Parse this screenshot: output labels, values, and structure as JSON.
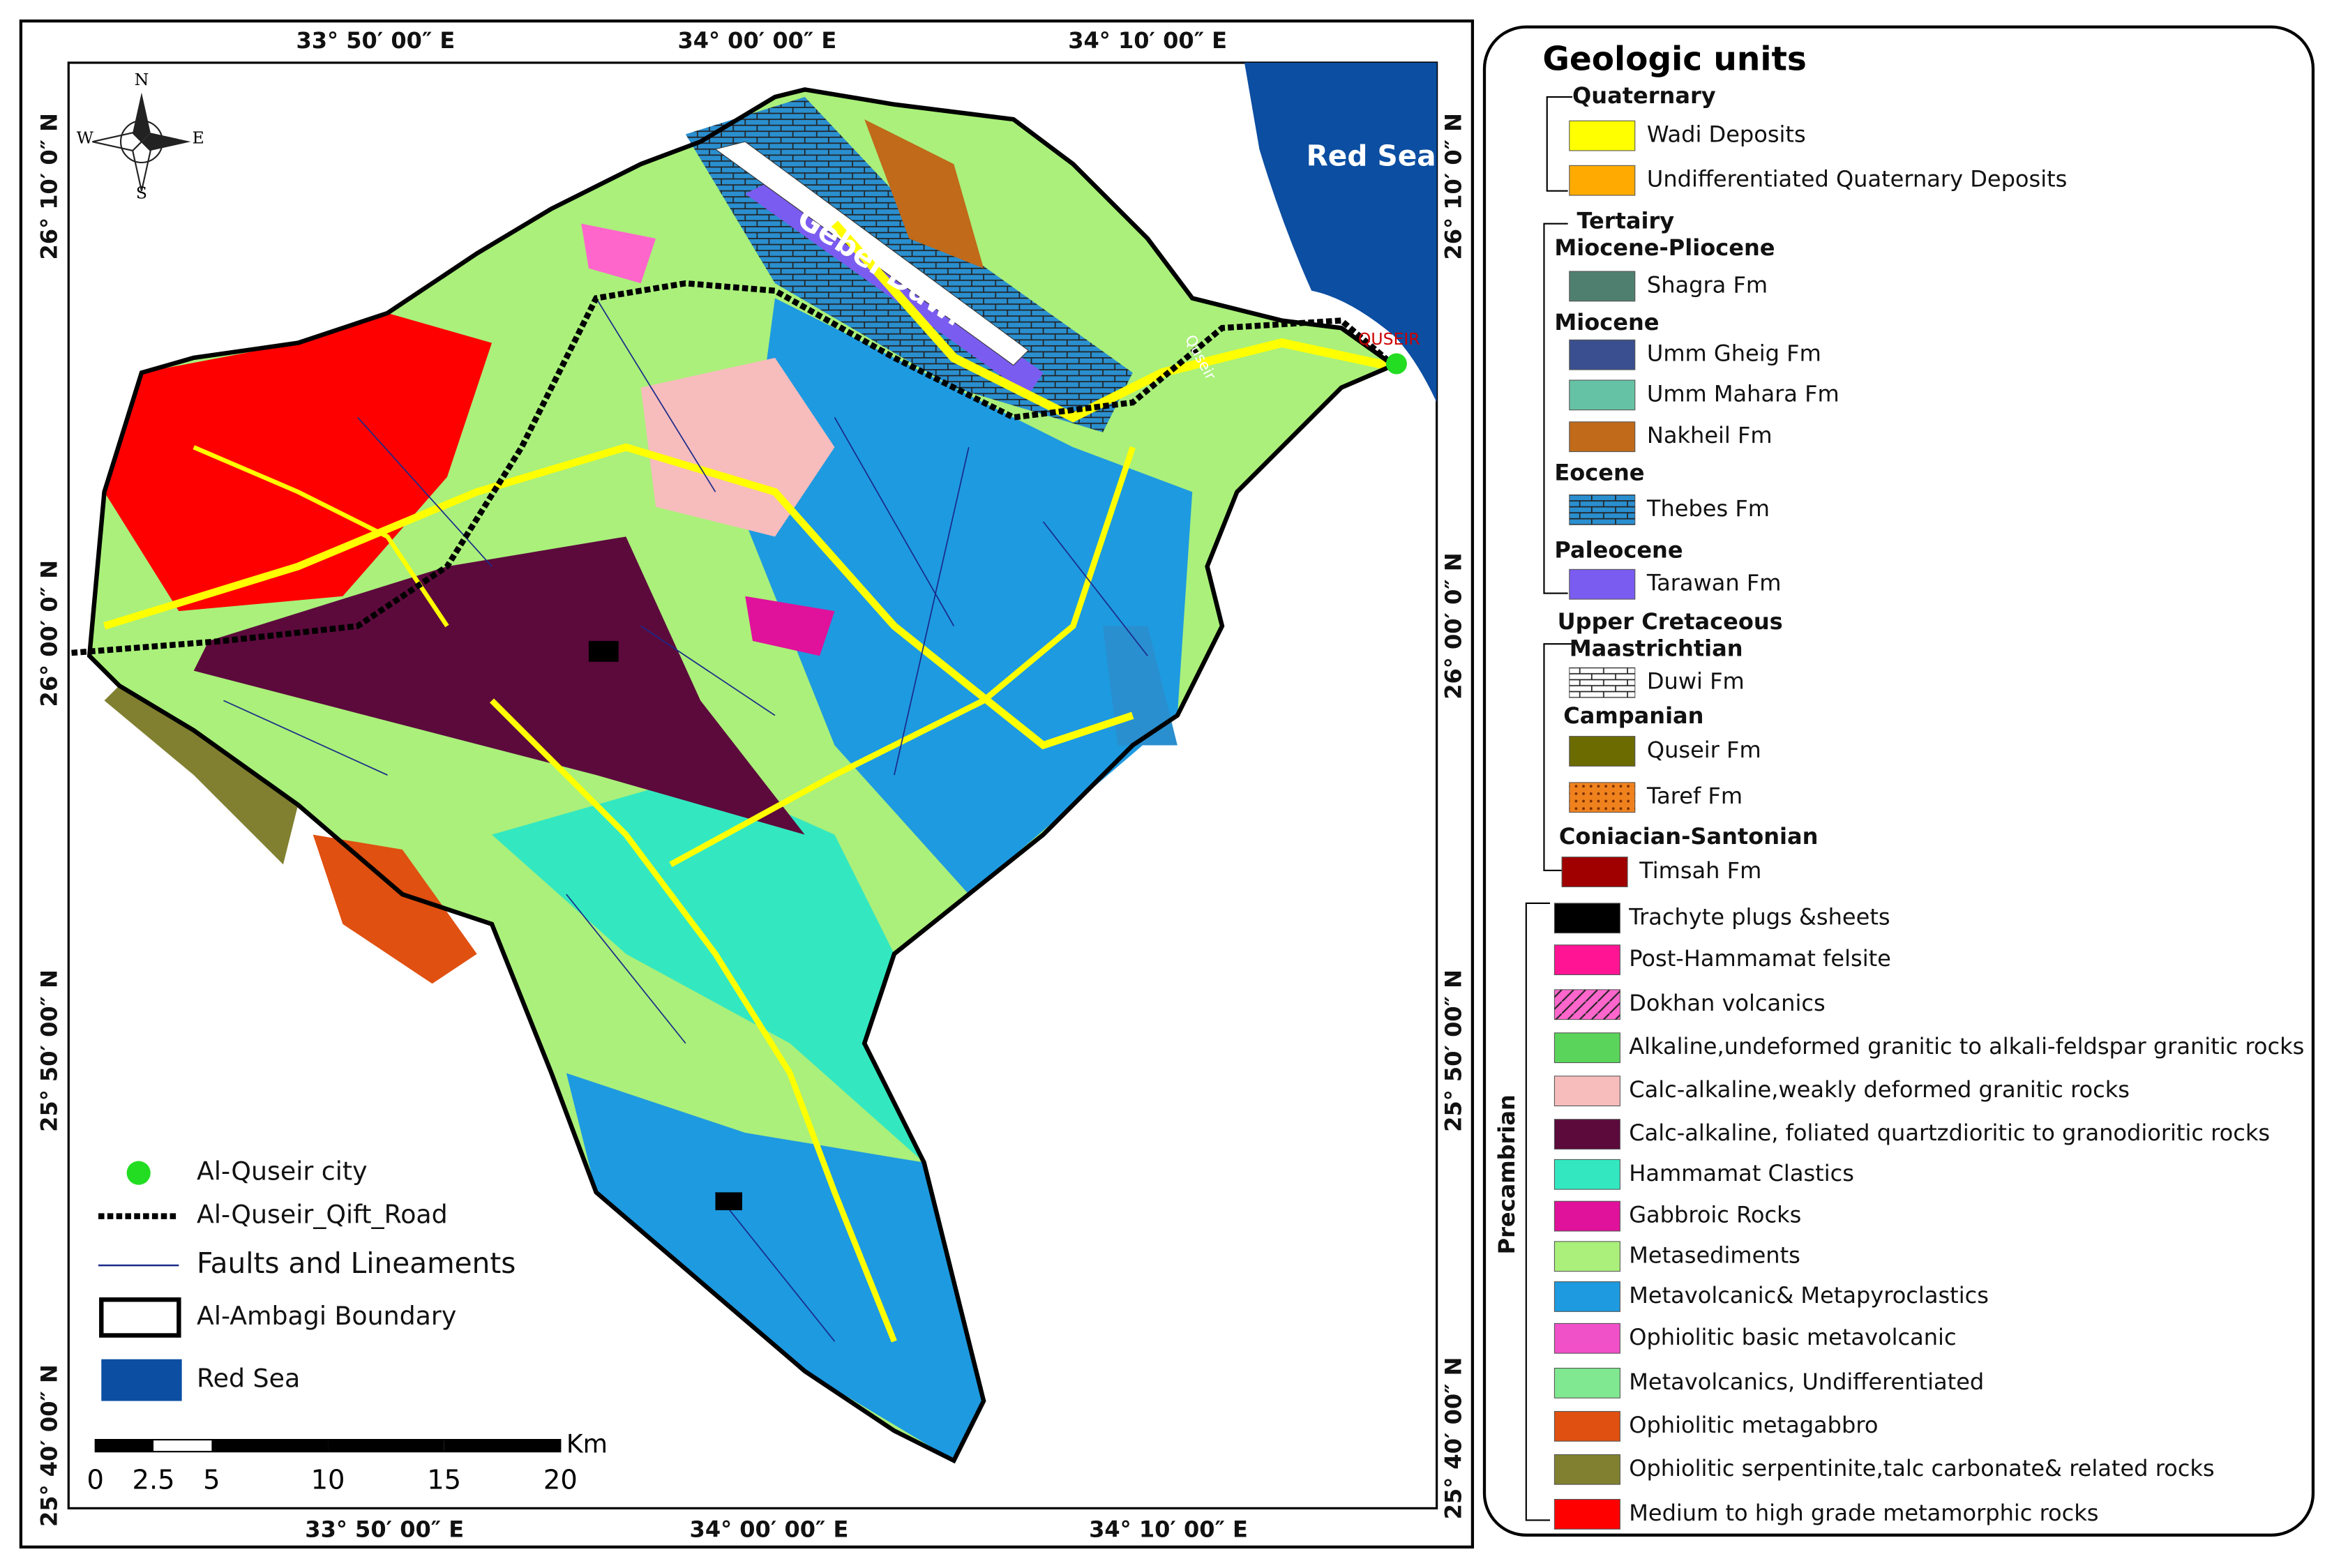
{
  "map": {
    "top_labels": [
      "33° 50′ 00″ E",
      "34° 00′ 00″ E",
      "34° 10′ 00″ E"
    ],
    "bottom_labels": [
      "33° 50′ 00″ E",
      "34° 00′ 00″ E",
      "34° 10′ 00″ E"
    ],
    "left_labels": [
      "26° 10′ 0″ N",
      "26° 00′ 0″ N",
      "25° 50′ 00″ N",
      "25° 40′ 00″ N"
    ],
    "right_labels": [
      "26° 10′ 0″ N",
      "26° 00′ 0″ N",
      "25° 50′ 00″ N",
      "25° 40′ 00″ N"
    ],
    "compass": [
      "N",
      "E",
      "S",
      "W"
    ],
    "places": {
      "red_sea": "Red Sea",
      "gebel_duwi": "Gebel Duwi",
      "quseir": "QUSEIR",
      "quseir_road": "Quseir"
    },
    "legend": [
      "Al-Quseir city",
      "Al-Quseir_Qift_Road",
      "Faults and Lineaments",
      "Al-Ambagi Boundary",
      "Red Sea"
    ],
    "scale_bar": {
      "ticks": [
        0,
        2.5,
        5,
        10,
        15,
        20
      ],
      "unit": "Km"
    }
  },
  "geologic_units": {
    "title": "Geologic units",
    "entries": [
      {
        "heading": "Quaternary"
      },
      {
        "label": "Wadi Deposits",
        "color": "#ffff00"
      },
      {
        "label": "Undifferentiated Quaternary Deposits",
        "color": "#ffaa00"
      },
      {
        "heading": "Tertairy"
      },
      {
        "heading": "Miocene-Pliocene"
      },
      {
        "label": "Shagra Fm",
        "color": "#4f7f6f"
      },
      {
        "heading": "Miocene"
      },
      {
        "label": "Umm Gheig Fm",
        "color": "#3a4f8f"
      },
      {
        "label": "Umm Mahara Fm",
        "color": "#66c2a5"
      },
      {
        "label": "Nakheil Fm",
        "color": "#c06a1a"
      },
      {
        "heading": "Eocene"
      },
      {
        "label": "Thebes Fm",
        "color": "#2a8fcf",
        "pattern": "bricks"
      },
      {
        "heading": "Paleocene"
      },
      {
        "label": "Tarawan Fm",
        "color": "#7b5cf0"
      },
      {
        "heading": "Upper Cretaceous"
      },
      {
        "heading": "Maastrichtian"
      },
      {
        "label": "Duwi Fm",
        "color": "#ffffff",
        "pattern": "bricks"
      },
      {
        "heading": "Campanian"
      },
      {
        "label": "Quseir Fm",
        "color": "#6b6b00"
      },
      {
        "label": "Taref Fm",
        "color": "#f0821e",
        "pattern": "dots"
      },
      {
        "heading": "Coniacian-Santonian"
      },
      {
        "label": "Timsah Fm",
        "color": "#a00000"
      }
    ],
    "precambrian": {
      "label": "Precambrian",
      "units": [
        {
          "label": "Trachyte plugs &sheets",
          "color": "#000000"
        },
        {
          "label": "Post-Hammamat felsite",
          "color": "#ff1493"
        },
        {
          "label": "Dokhan volcanics",
          "color": "#ff66cc",
          "pattern": "hatch"
        },
        {
          "label": "Alkaline,undeformed granitic to alkali-feldspar granitic rocks",
          "color": "#5ad45a"
        },
        {
          "label": "Calc-alkaline,weakly deformed granitic rocks",
          "color": "#f7bcbc"
        },
        {
          "label": "Calc-alkaline, foliated quartzdioritic to granodioritic rocks",
          "color": "#5c0a3c"
        },
        {
          "label": "Hammamat Clastics",
          "color": "#33e8c0"
        },
        {
          "label": "Gabbroic Rocks",
          "color": "#e0119a"
        },
        {
          "label": "Metasediments",
          "color": "#aaf07a"
        },
        {
          "label": "Metavolcanic& Metapyroclastics",
          "color": "#1e9ae0"
        },
        {
          "label": "Ophiolitic basic metavolcanic",
          "color": "#f050c8"
        },
        {
          "label": "Metavolcanics, Undifferentiated",
          "color": "#80e890"
        },
        {
          "label": "Ophiolitic metagabbro",
          "color": "#e05010"
        },
        {
          "label": "Ophiolitic serpentinite,talc carbonate& related rocks",
          "color": "#808030"
        },
        {
          "label": "Medium to high grade metamorphic rocks",
          "color": "#ff0000"
        }
      ]
    }
  }
}
